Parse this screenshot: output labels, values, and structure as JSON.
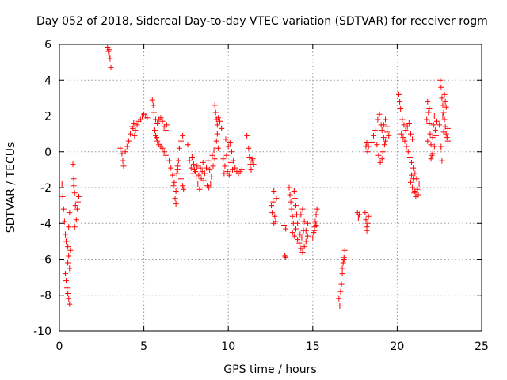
{
  "chart_data": {
    "type": "scatter",
    "title": "Day 052 of 2018, Sidereal Day-to-day VTEC variation (SDTVAR) for receiver rogm",
    "xlabel": "GPS time / hours",
    "ylabel": "SDTVAR / TECUs",
    "xlim": [
      0,
      25
    ],
    "ylim": [
      -10,
      6
    ],
    "x_ticks": [
      0,
      5,
      10,
      15,
      20,
      25
    ],
    "y_ticks": [
      -10,
      -8,
      -6,
      -4,
      -2,
      0,
      2,
      4,
      6
    ],
    "x_tick_labels": [
      "0",
      "5",
      "10",
      "15",
      "20",
      "25"
    ],
    "y_tick_labels": [
      "-10",
      "-8",
      "-6",
      "-4",
      "-2",
      "0",
      "2",
      "4",
      "6"
    ],
    "grid": true,
    "marker": "+",
    "color": "#ff0000",
    "series": [
      {
        "name": "SDTVAR",
        "points": [
          [
            0.15,
            -1.8
          ],
          [
            0.2,
            -2.5
          ],
          [
            0.25,
            -3.2
          ],
          [
            0.3,
            -3.9
          ],
          [
            0.35,
            -4.6
          ],
          [
            0.4,
            -5.0
          ],
          [
            0.45,
            -4.8
          ],
          [
            0.5,
            -5.3
          ],
          [
            0.55,
            -4.2
          ],
          [
            0.6,
            -3.4
          ],
          [
            0.35,
            -6.8
          ],
          [
            0.4,
            -7.2
          ],
          [
            0.45,
            -7.6
          ],
          [
            0.5,
            -7.9
          ],
          [
            0.55,
            -8.2
          ],
          [
            0.6,
            -8.5
          ],
          [
            0.5,
            -6.2
          ],
          [
            0.55,
            -5.8
          ],
          [
            0.6,
            -6.5
          ],
          [
            0.65,
            -5.5
          ],
          [
            0.8,
            -0.7
          ],
          [
            0.85,
            -1.5
          ],
          [
            0.9,
            -2.3
          ],
          [
            0.95,
            -3.0
          ],
          [
            1.0,
            -3.8
          ],
          [
            1.05,
            -3.2
          ],
          [
            1.1,
            -2.8
          ],
          [
            1.15,
            -2.5
          ],
          [
            0.9,
            -4.2
          ],
          [
            0.85,
            -1.9
          ],
          [
            2.85,
            5.8
          ],
          [
            2.9,
            5.6
          ],
          [
            2.95,
            5.4
          ],
          [
            3.0,
            5.2
          ],
          [
            3.05,
            4.7
          ],
          [
            2.95,
            5.7
          ],
          [
            3.6,
            0.2
          ],
          [
            3.7,
            -0.1
          ],
          [
            3.75,
            -0.5
          ],
          [
            3.8,
            -0.8
          ],
          [
            3.9,
            0.0
          ],
          [
            4.0,
            0.3
          ],
          [
            4.1,
            0.6
          ],
          [
            4.2,
            1.0
          ],
          [
            4.3,
            1.4
          ],
          [
            4.4,
            1.6
          ],
          [
            4.5,
            1.2
          ],
          [
            4.6,
            1.5
          ],
          [
            4.7,
            1.7
          ],
          [
            4.8,
            1.8
          ],
          [
            4.9,
            2.0
          ],
          [
            5.0,
            2.1
          ],
          [
            5.1,
            2.0
          ],
          [
            5.2,
            1.9
          ],
          [
            4.45,
            0.9
          ],
          [
            4.35,
            1.3
          ],
          [
            5.5,
            2.9
          ],
          [
            5.55,
            2.6
          ],
          [
            5.6,
            2.2
          ],
          [
            5.7,
            1.8
          ],
          [
            5.8,
            1.6
          ],
          [
            5.9,
            1.8
          ],
          [
            6.0,
            1.9
          ],
          [
            6.1,
            1.7
          ],
          [
            6.2,
            1.4
          ],
          [
            6.3,
            1.2
          ],
          [
            5.7,
            0.9
          ],
          [
            5.8,
            0.6
          ],
          [
            5.9,
            0.4
          ],
          [
            6.0,
            0.3
          ],
          [
            6.1,
            0.2
          ],
          [
            6.2,
            0.0
          ],
          [
            6.3,
            -0.2
          ],
          [
            5.65,
            1.2
          ],
          [
            5.75,
            0.8
          ],
          [
            6.35,
            1.5
          ],
          [
            6.5,
            -0.5
          ],
          [
            6.6,
            -0.9
          ],
          [
            6.7,
            -1.3
          ],
          [
            6.8,
            -1.7
          ],
          [
            6.9,
            -2.2
          ],
          [
            6.85,
            -2.6
          ],
          [
            6.9,
            -2.9
          ],
          [
            7.0,
            -1.0
          ],
          [
            7.05,
            -0.5
          ],
          [
            6.75,
            -1.9
          ],
          [
            7.1,
            0.2
          ],
          [
            7.2,
            0.6
          ],
          [
            7.3,
            0.9
          ],
          [
            7.2,
            -1.5
          ],
          [
            7.3,
            -1.9
          ],
          [
            7.35,
            -2.1
          ],
          [
            7.0,
            -0.8
          ],
          [
            6.95,
            -1.2
          ],
          [
            7.6,
            0.4
          ],
          [
            7.7,
            -0.5
          ],
          [
            7.8,
            -0.9
          ],
          [
            7.9,
            -1.2
          ],
          [
            8.0,
            -1.0
          ],
          [
            8.1,
            -1.4
          ],
          [
            8.2,
            -1.8
          ],
          [
            8.3,
            -2.1
          ],
          [
            8.4,
            -1.5
          ],
          [
            8.5,
            -0.6
          ],
          [
            7.85,
            -0.3
          ],
          [
            7.95,
            -0.7
          ],
          [
            8.05,
            -1.1
          ],
          [
            8.15,
            -0.8
          ],
          [
            8.25,
            -1.3
          ],
          [
            8.35,
            -0.9
          ],
          [
            8.45,
            -1.1
          ],
          [
            8.55,
            -1.6
          ],
          [
            8.6,
            -1.2
          ],
          [
            8.7,
            -0.9
          ],
          [
            8.8,
            -0.5
          ],
          [
            8.9,
            -1.0
          ],
          [
            9.0,
            -1.4
          ],
          [
            9.1,
            -0.8
          ],
          [
            9.2,
            -0.4
          ],
          [
            8.95,
            -1.8
          ],
          [
            8.75,
            -1.9
          ],
          [
            8.85,
            -2.0
          ],
          [
            9.05,
            -0.2
          ],
          [
            9.15,
            0.1
          ],
          [
            9.2,
            2.6
          ],
          [
            9.25,
            2.2
          ],
          [
            9.3,
            1.8
          ],
          [
            9.35,
            1.5
          ],
          [
            9.4,
            1.9
          ],
          [
            9.5,
            1.7
          ],
          [
            9.6,
            1.3
          ],
          [
            9.3,
            0.6
          ],
          [
            9.4,
            0.2
          ],
          [
            9.35,
            1.0
          ],
          [
            9.7,
            -0.4
          ],
          [
            9.8,
            -0.8
          ],
          [
            9.9,
            -0.2
          ],
          [
            10.0,
            0.3
          ],
          [
            10.1,
            0.5
          ],
          [
            10.2,
            0.0
          ],
          [
            10.3,
            -0.5
          ],
          [
            10.4,
            -0.9
          ],
          [
            10.5,
            -1.1
          ],
          [
            10.6,
            -1.2
          ],
          [
            10.7,
            -1.1
          ],
          [
            10.8,
            -1.0
          ],
          [
            9.85,
            0.7
          ],
          [
            9.95,
            -1.1
          ],
          [
            10.05,
            -1.3
          ],
          [
            9.75,
            -1.2
          ],
          [
            10.15,
            -0.6
          ],
          [
            10.25,
            -1.0
          ],
          [
            11.1,
            0.9
          ],
          [
            11.2,
            0.2
          ],
          [
            11.25,
            -0.3
          ],
          [
            11.3,
            -0.7
          ],
          [
            11.35,
            -1.0
          ],
          [
            11.4,
            -0.5
          ],
          [
            11.5,
            -0.7
          ],
          [
            11.45,
            -0.4
          ],
          [
            12.55,
            -3.0
          ],
          [
            12.6,
            -3.4
          ],
          [
            12.65,
            -2.8
          ],
          [
            12.7,
            -2.2
          ],
          [
            12.75,
            -3.6
          ],
          [
            12.8,
            -3.9
          ],
          [
            12.85,
            -2.6
          ],
          [
            12.7,
            -4.0
          ],
          [
            13.3,
            -4.1
          ],
          [
            13.4,
            -4.3
          ],
          [
            13.35,
            -5.8
          ],
          [
            13.4,
            -5.9
          ],
          [
            13.6,
            -2.0
          ],
          [
            13.65,
            -2.4
          ],
          [
            13.7,
            -2.8
          ],
          [
            13.75,
            -3.2
          ],
          [
            13.8,
            -3.6
          ],
          [
            13.85,
            -4.0
          ],
          [
            13.9,
            -2.2
          ],
          [
            13.95,
            -2.6
          ],
          [
            14.0,
            -3.0
          ],
          [
            14.05,
            -3.5
          ],
          [
            13.8,
            -4.5
          ],
          [
            13.9,
            -4.7
          ],
          [
            14.0,
            -4.3
          ],
          [
            14.1,
            -4.0
          ],
          [
            14.2,
            -3.7
          ],
          [
            14.3,
            -3.5
          ],
          [
            14.4,
            -3.2
          ],
          [
            14.5,
            -3.9
          ],
          [
            14.6,
            -4.4
          ],
          [
            14.7,
            -4.0
          ],
          [
            14.1,
            -4.9
          ],
          [
            14.2,
            -5.1
          ],
          [
            14.3,
            -5.4
          ],
          [
            14.4,
            -5.6
          ],
          [
            14.5,
            -5.3
          ],
          [
            14.6,
            -5.0
          ],
          [
            14.7,
            -4.7
          ],
          [
            14.25,
            -4.6
          ],
          [
            14.35,
            -4.8
          ],
          [
            14.45,
            -4.4
          ],
          [
            15.0,
            -4.8
          ],
          [
            15.05,
            -4.5
          ],
          [
            15.1,
            -4.2
          ],
          [
            15.15,
            -3.9
          ],
          [
            15.2,
            -3.5
          ],
          [
            15.25,
            -3.2
          ],
          [
            15.1,
            -4.4
          ],
          [
            15.2,
            -4.1
          ],
          [
            16.55,
            -8.2
          ],
          [
            16.6,
            -8.6
          ],
          [
            16.65,
            -7.8
          ],
          [
            16.7,
            -7.4
          ],
          [
            16.75,
            -6.8
          ],
          [
            16.8,
            -6.2
          ],
          [
            16.85,
            -5.9
          ],
          [
            16.9,
            -5.5
          ],
          [
            16.75,
            -6.5
          ],
          [
            16.85,
            -6.0
          ],
          [
            17.65,
            -3.4
          ],
          [
            17.7,
            -3.7
          ],
          [
            17.75,
            -3.5
          ],
          [
            18.1,
            -3.4
          ],
          [
            18.15,
            -3.8
          ],
          [
            18.2,
            -4.2
          ],
          [
            18.25,
            -4.0
          ],
          [
            18.3,
            -3.6
          ],
          [
            18.2,
            -4.4
          ],
          [
            18.15,
            0.3
          ],
          [
            18.2,
            0.5
          ],
          [
            18.25,
            0.0
          ],
          [
            18.3,
            0.3
          ],
          [
            18.5,
            0.5
          ],
          [
            18.6,
            0.9
          ],
          [
            18.7,
            1.2
          ],
          [
            18.8,
            0.4
          ],
          [
            18.9,
            -0.2
          ],
          [
            19.0,
            -0.6
          ],
          [
            19.1,
            -0.4
          ],
          [
            18.85,
            1.8
          ],
          [
            18.95,
            2.1
          ],
          [
            19.05,
            1.5
          ],
          [
            19.1,
            1.2
          ],
          [
            19.2,
            0.8
          ],
          [
            19.3,
            0.6
          ],
          [
            19.4,
            1.1
          ],
          [
            19.5,
            0.9
          ],
          [
            19.2,
            1.5
          ],
          [
            19.3,
            1.8
          ],
          [
            19.4,
            1.4
          ],
          [
            19.15,
            0.0
          ],
          [
            19.25,
            0.4
          ],
          [
            20.1,
            3.2
          ],
          [
            20.15,
            2.8
          ],
          [
            20.2,
            2.4
          ],
          [
            20.3,
            1.8
          ],
          [
            20.4,
            1.5
          ],
          [
            20.5,
            1.2
          ],
          [
            20.6,
            1.4
          ],
          [
            20.7,
            1.6
          ],
          [
            20.8,
            1.0
          ],
          [
            20.9,
            0.7
          ],
          [
            20.25,
            1.0
          ],
          [
            20.35,
            0.8
          ],
          [
            20.45,
            0.6
          ],
          [
            20.55,
            0.3
          ],
          [
            20.65,
            0.0
          ],
          [
            20.75,
            -0.3
          ],
          [
            20.85,
            -0.6
          ],
          [
            20.95,
            -0.9
          ],
          [
            21.05,
            -1.2
          ],
          [
            21.15,
            -1.5
          ],
          [
            20.8,
            -1.7
          ],
          [
            20.9,
            -2.0
          ],
          [
            21.0,
            -2.3
          ],
          [
            21.1,
            -2.5
          ],
          [
            21.2,
            -2.1
          ],
          [
            21.3,
            -1.8
          ],
          [
            20.95,
            -1.5
          ],
          [
            21.05,
            -2.2
          ],
          [
            21.25,
            -2.4
          ],
          [
            20.85,
            -1.3
          ],
          [
            21.8,
            2.8
          ],
          [
            21.85,
            2.2
          ],
          [
            21.9,
            1.6
          ],
          [
            21.95,
            1.0
          ],
          [
            22.0,
            0.4
          ],
          [
            22.05,
            -0.2
          ],
          [
            22.1,
            0.8
          ],
          [
            22.15,
            1.5
          ],
          [
            22.2,
            2.0
          ],
          [
            22.25,
            1.2
          ],
          [
            21.75,
            1.8
          ],
          [
            21.8,
            0.6
          ],
          [
            22.0,
            -0.4
          ],
          [
            22.1,
            -0.1
          ],
          [
            22.3,
            0.9
          ],
          [
            22.35,
            1.7
          ],
          [
            22.2,
            0.3
          ],
          [
            21.9,
            2.4
          ],
          [
            22.55,
            4.0
          ],
          [
            22.6,
            3.6
          ],
          [
            22.65,
            3.0
          ],
          [
            22.7,
            2.6
          ],
          [
            22.75,
            2.2
          ],
          [
            22.8,
            1.8
          ],
          [
            22.85,
            1.4
          ],
          [
            22.9,
            1.0
          ],
          [
            22.95,
            0.8
          ],
          [
            23.0,
            1.3
          ],
          [
            22.6,
            0.3
          ],
          [
            22.65,
            -0.5
          ],
          [
            22.7,
            2.0
          ],
          [
            22.8,
            3.2
          ],
          [
            22.9,
            2.5
          ],
          [
            23.0,
            0.6
          ],
          [
            22.75,
            1.1
          ],
          [
            22.85,
            2.8
          ],
          [
            22.5,
            1.5
          ],
          [
            22.55,
            0.1
          ]
        ]
      }
    ]
  }
}
